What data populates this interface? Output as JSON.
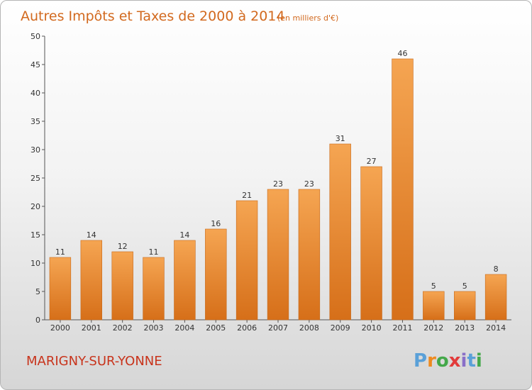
{
  "commune": "MARIGNY-SUR-YONNE",
  "logo": {
    "letters": [
      "P",
      "r",
      "o",
      "x",
      "i",
      "t",
      "i"
    ],
    "colors": [
      "#5aa0d8",
      "#ee8a1f",
      "#44a84a",
      "#e23b3b",
      "#8a6fc8",
      "#5aa0d8",
      "#44a84a"
    ]
  },
  "colors": {
    "bar_light": "#f5a552",
    "bar_dark": "#d66f19",
    "bar_stroke": "#c76a1c",
    "title": "#d2691e",
    "commune": "#c8341c"
  },
  "chart_data": {
    "type": "bar",
    "title": "Autres Impôts et Taxes de 2000 à 2014",
    "subtitle": "(en milliers d'€)",
    "xlabel": "",
    "ylabel": "",
    "categories": [
      "2000",
      "2001",
      "2002",
      "2003",
      "2004",
      "2005",
      "2006",
      "2007",
      "2008",
      "2009",
      "2010",
      "2011",
      "2012",
      "2013",
      "2014"
    ],
    "values": [
      11,
      14,
      12,
      11,
      14,
      16,
      21,
      23,
      23,
      31,
      27,
      46,
      5,
      5,
      8
    ],
    "ylim": [
      0,
      50
    ],
    "yticks": [
      0,
      5,
      10,
      15,
      20,
      25,
      30,
      35,
      40,
      45,
      50
    ],
    "grid": false,
    "legend": "none"
  }
}
